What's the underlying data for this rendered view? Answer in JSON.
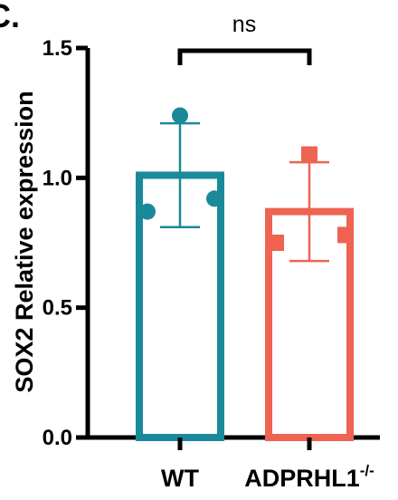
{
  "panel_label": "C.",
  "chart_data": {
    "type": "bar",
    "title": "",
    "xlabel": "",
    "ylabel": "SOX2 Relative expression",
    "ylim": [
      0,
      1.5
    ],
    "yticks": [
      "0.0",
      "0.5",
      "1.0",
      "1.5"
    ],
    "categories": [
      "WT",
      "ADPRHL1"
    ],
    "category_superscripts": [
      "",
      "-/-"
    ],
    "series": [
      {
        "values": [
          1.01,
          0.87
        ],
        "sd": [
          0.2,
          0.19
        ],
        "points": [
          [
            1.24,
            0.87,
            0.92
          ],
          [
            1.09,
            0.75,
            0.78
          ]
        ],
        "colors": [
          "#1a8a9a",
          "#ee6352"
        ],
        "markers": [
          "circle",
          "square"
        ]
      }
    ],
    "significance": {
      "label": "ns",
      "between": [
        0,
        1
      ]
    },
    "grid": false,
    "legend": "none"
  }
}
